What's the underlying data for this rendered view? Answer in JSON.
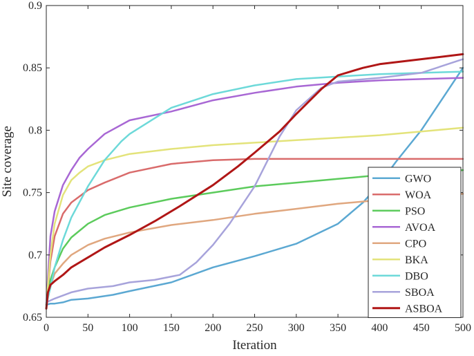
{
  "chart_data": {
    "type": "line",
    "title": "",
    "xlabel": "Iteration",
    "ylabel": "Site coverage",
    "xlim": [
      0,
      500
    ],
    "ylim": [
      0.65,
      0.9
    ],
    "xticks": [
      0,
      50,
      100,
      150,
      200,
      250,
      300,
      350,
      400,
      450,
      500
    ],
    "yticks": [
      0.65,
      0.7,
      0.75,
      0.8,
      0.85,
      0.9
    ],
    "xtick_labels": [
      "0",
      "50",
      "100",
      "150",
      "200",
      "250",
      "300",
      "350",
      "400",
      "450",
      "500"
    ],
    "ytick_labels": [
      "0.65",
      "0.7",
      "0.75",
      "0.8",
      "0.85",
      "0.9"
    ],
    "grid": false,
    "legend_position": "lower-right",
    "series": [
      {
        "name": "GWO",
        "color": "#5BA8D2",
        "x": [
          0,
          5,
          10,
          20,
          30,
          50,
          80,
          100,
          150,
          200,
          250,
          300,
          350,
          380,
          400,
          420,
          450,
          480,
          500
        ],
        "y": [
          0.66,
          0.661,
          0.661,
          0.662,
          0.664,
          0.665,
          0.668,
          0.671,
          0.678,
          0.69,
          0.699,
          0.709,
          0.725,
          0.742,
          0.757,
          0.775,
          0.8,
          0.83,
          0.85
        ]
      },
      {
        "name": "WOA",
        "color": "#D96B6B",
        "x": [
          0,
          5,
          10,
          20,
          30,
          50,
          70,
          100,
          150,
          200,
          250,
          300,
          350,
          400,
          450,
          500
        ],
        "y": [
          0.66,
          0.695,
          0.715,
          0.733,
          0.742,
          0.752,
          0.758,
          0.766,
          0.773,
          0.776,
          0.777,
          0.777,
          0.777,
          0.777,
          0.777,
          0.777
        ]
      },
      {
        "name": "PSO",
        "color": "#5CCB5C",
        "x": [
          0,
          5,
          10,
          20,
          30,
          50,
          70,
          100,
          150,
          200,
          250,
          300,
          350,
          400,
          450,
          500
        ],
        "y": [
          0.66,
          0.68,
          0.69,
          0.705,
          0.714,
          0.725,
          0.732,
          0.738,
          0.745,
          0.75,
          0.755,
          0.758,
          0.761,
          0.764,
          0.766,
          0.768
        ]
      },
      {
        "name": "AVOA",
        "color": "#A867D4",
        "x": [
          0,
          5,
          10,
          20,
          30,
          40,
          50,
          70,
          100,
          150,
          200,
          250,
          300,
          350,
          400,
          450,
          500
        ],
        "y": [
          0.66,
          0.715,
          0.735,
          0.756,
          0.768,
          0.778,
          0.785,
          0.797,
          0.808,
          0.815,
          0.824,
          0.83,
          0.835,
          0.838,
          0.84,
          0.841,
          0.842
        ]
      },
      {
        "name": "CPO",
        "color": "#E0A77F",
        "x": [
          0,
          5,
          10,
          20,
          30,
          50,
          70,
          100,
          150,
          200,
          250,
          300,
          350,
          400,
          450,
          500
        ],
        "y": [
          0.66,
          0.675,
          0.685,
          0.693,
          0.7,
          0.708,
          0.713,
          0.718,
          0.724,
          0.728,
          0.733,
          0.737,
          0.741,
          0.744,
          0.747,
          0.749
        ]
      },
      {
        "name": "BKA",
        "color": "#E3E37A",
        "x": [
          0,
          5,
          10,
          20,
          30,
          40,
          50,
          70,
          100,
          150,
          200,
          250,
          300,
          350,
          400,
          450,
          500
        ],
        "y": [
          0.66,
          0.7,
          0.725,
          0.748,
          0.76,
          0.766,
          0.771,
          0.776,
          0.781,
          0.785,
          0.788,
          0.79,
          0.792,
          0.794,
          0.796,
          0.799,
          0.802
        ]
      },
      {
        "name": "DBO",
        "color": "#6DD9D9",
        "x": [
          0,
          5,
          10,
          20,
          30,
          50,
          70,
          90,
          100,
          150,
          200,
          250,
          300,
          350,
          400,
          450,
          500
        ],
        "y": [
          0.66,
          0.674,
          0.69,
          0.712,
          0.73,
          0.755,
          0.776,
          0.791,
          0.797,
          0.818,
          0.829,
          0.836,
          0.841,
          0.843,
          0.845,
          0.846,
          0.847
        ]
      },
      {
        "name": "SBOA",
        "color": "#A7A3DB",
        "x": [
          0,
          10,
          30,
          50,
          80,
          100,
          130,
          160,
          180,
          200,
          220,
          250,
          280,
          300,
          330,
          350,
          400,
          450,
          500
        ],
        "y": [
          0.662,
          0.665,
          0.67,
          0.673,
          0.675,
          0.678,
          0.68,
          0.684,
          0.694,
          0.708,
          0.725,
          0.755,
          0.795,
          0.816,
          0.834,
          0.839,
          0.842,
          0.846,
          0.857
        ]
      },
      {
        "name": "ASBOA",
        "color": "#B01616",
        "x": [
          0,
          2,
          5,
          10,
          20,
          30,
          50,
          70,
          100,
          130,
          160,
          200,
          230,
          250,
          280,
          300,
          330,
          350,
          380,
          400,
          450,
          500
        ],
        "y": [
          0.657,
          0.67,
          0.676,
          0.679,
          0.684,
          0.69,
          0.698,
          0.706,
          0.716,
          0.727,
          0.739,
          0.756,
          0.771,
          0.782,
          0.799,
          0.813,
          0.833,
          0.844,
          0.85,
          0.853,
          0.857,
          0.861
        ]
      }
    ]
  }
}
